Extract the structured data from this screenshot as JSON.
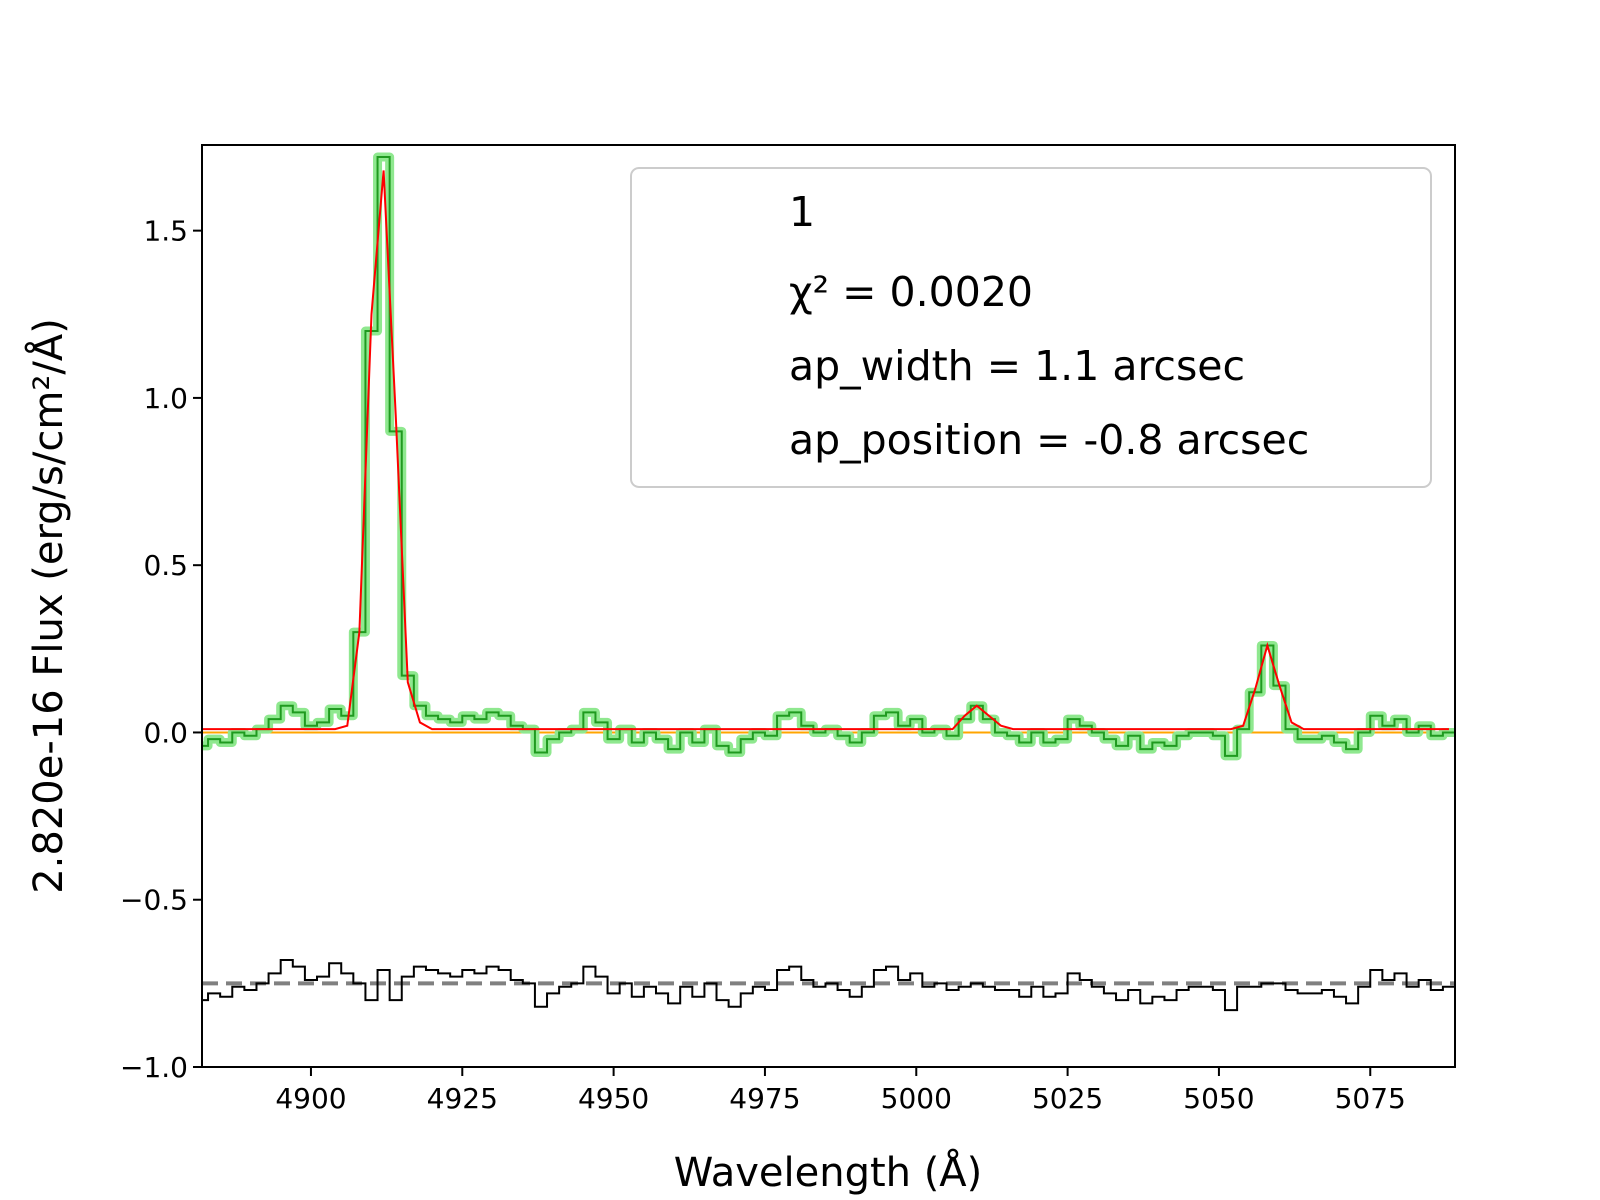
{
  "chart_data": {
    "type": "step",
    "xlabel": "Wavelength (Å)",
    "ylabel": "2.820e-16  Flux (erg/s/cm²/Å)",
    "annotations": [
      "1",
      "χ² = 0.0020",
      "ap_width = 1.1 arcsec",
      "ap_position = -0.8 arcsec"
    ],
    "xlim": [
      4882,
      5089
    ],
    "ylim": [
      -1.0,
      1.756
    ],
    "xticks": [
      4900,
      4925,
      4950,
      4975,
      5000,
      5025,
      5050,
      5075
    ],
    "yticks": [
      {
        "value": -1.0,
        "label": "−1.0"
      },
      {
        "value": -0.5,
        "label": "−0.5"
      },
      {
        "value": 0.0,
        "label": "0.0"
      },
      {
        "value": 0.5,
        "label": "0.5"
      },
      {
        "value": 1.0,
        "label": "1.0"
      },
      {
        "value": 1.5,
        "label": "1.5"
      }
    ],
    "x": [
      4882,
      4884,
      4886,
      4888,
      4890,
      4892,
      4894,
      4896,
      4898,
      4900,
      4902,
      4904,
      4906,
      4908,
      4910,
      4912,
      4914,
      4916,
      4918,
      4920,
      4922,
      4924,
      4926,
      4928,
      4930,
      4932,
      4934,
      4936,
      4938,
      4940,
      4942,
      4944,
      4946,
      4948,
      4950,
      4952,
      4954,
      4956,
      4958,
      4960,
      4962,
      4964,
      4966,
      4968,
      4970,
      4972,
      4974,
      4976,
      4978,
      4980,
      4982,
      4984,
      4986,
      4988,
      4990,
      4992,
      4994,
      4996,
      4998,
      5000,
      5002,
      5004,
      5006,
      5008,
      5010,
      5012,
      5014,
      5016,
      5018,
      5020,
      5022,
      5024,
      5026,
      5028,
      5030,
      5032,
      5034,
      5036,
      5038,
      5040,
      5042,
      5044,
      5046,
      5048,
      5050,
      5052,
      5054,
      5056,
      5058,
      5060,
      5062,
      5064,
      5066,
      5068,
      5070,
      5072,
      5074,
      5076,
      5078,
      5080,
      5082,
      5084,
      5086,
      5088
    ],
    "hlines": [
      {
        "y": 0,
        "color": "#ffa500",
        "dash": false
      },
      {
        "y": -0.75,
        "color": "#808080",
        "dash": true
      }
    ],
    "series": [
      {
        "color": "#1f9a1f",
        "halo": "#8fe88f",
        "style": "step",
        "values": [
          -0.04,
          -0.02,
          -0.03,
          0.0,
          -0.01,
          0.01,
          0.04,
          0.08,
          0.06,
          0.02,
          0.03,
          0.07,
          0.05,
          0.3,
          1.2,
          1.72,
          0.9,
          0.17,
          0.08,
          0.05,
          0.04,
          0.03,
          0.05,
          0.04,
          0.06,
          0.05,
          0.02,
          0.01,
          -0.06,
          -0.02,
          0.0,
          0.01,
          0.06,
          0.03,
          -0.02,
          0.01,
          -0.03,
          0.0,
          -0.02,
          -0.05,
          0.0,
          -0.03,
          0.01,
          -0.04,
          -0.06,
          -0.02,
          0.0,
          -0.01,
          0.05,
          0.06,
          0.02,
          0.0,
          0.01,
          -0.01,
          -0.03,
          0.0,
          0.05,
          0.06,
          0.02,
          0.04,
          0.0,
          0.01,
          -0.01,
          0.04,
          0.08,
          0.04,
          0.0,
          -0.01,
          -0.03,
          0.0,
          -0.03,
          -0.02,
          0.04,
          0.02,
          0.0,
          -0.02,
          -0.04,
          -0.01,
          -0.05,
          -0.03,
          -0.04,
          -0.01,
          0.0,
          0.0,
          -0.01,
          -0.07,
          0.01,
          0.12,
          0.26,
          0.14,
          0.01,
          -0.02,
          -0.02,
          -0.01,
          -0.03,
          -0.05,
          0.0,
          0.05,
          0.02,
          0.04,
          0.0,
          0.02,
          -0.01,
          0.0
        ]
      },
      {
        "color": "#ff0000",
        "style": "line",
        "values": [
          0.01,
          0.01,
          0.01,
          0.01,
          0.01,
          0.01,
          0.01,
          0.01,
          0.01,
          0.01,
          0.01,
          0.01,
          0.02,
          0.3,
          1.25,
          1.68,
          0.95,
          0.15,
          0.03,
          0.01,
          0.01,
          0.01,
          0.01,
          0.01,
          0.01,
          0.01,
          0.01,
          0.01,
          0.01,
          0.01,
          0.01,
          0.01,
          0.01,
          0.01,
          0.01,
          0.01,
          0.01,
          0.01,
          0.01,
          0.01,
          0.01,
          0.01,
          0.01,
          0.01,
          0.01,
          0.01,
          0.01,
          0.01,
          0.01,
          0.01,
          0.01,
          0.01,
          0.01,
          0.01,
          0.01,
          0.01,
          0.01,
          0.01,
          0.01,
          0.01,
          0.01,
          0.01,
          0.01,
          0.05,
          0.08,
          0.05,
          0.02,
          0.01,
          0.01,
          0.01,
          0.01,
          0.01,
          0.01,
          0.01,
          0.01,
          0.01,
          0.01,
          0.01,
          0.01,
          0.01,
          0.01,
          0.01,
          0.01,
          0.01,
          0.01,
          0.01,
          0.02,
          0.13,
          0.26,
          0.14,
          0.03,
          0.01,
          0.01,
          0.01,
          0.01,
          0.01,
          0.01,
          0.01,
          0.01,
          0.01,
          0.01,
          0.01,
          0.01,
          0.01
        ]
      },
      {
        "color": "#000000",
        "style": "step",
        "values": [
          -0.8,
          -0.78,
          -0.79,
          -0.76,
          -0.77,
          -0.75,
          -0.72,
          -0.68,
          -0.7,
          -0.74,
          -0.73,
          -0.69,
          -0.72,
          -0.75,
          -0.8,
          -0.71,
          -0.8,
          -0.73,
          -0.7,
          -0.71,
          -0.72,
          -0.73,
          -0.71,
          -0.72,
          -0.7,
          -0.71,
          -0.74,
          -0.75,
          -0.82,
          -0.78,
          -0.76,
          -0.75,
          -0.7,
          -0.73,
          -0.78,
          -0.75,
          -0.79,
          -0.76,
          -0.78,
          -0.81,
          -0.76,
          -0.79,
          -0.75,
          -0.8,
          -0.82,
          -0.78,
          -0.76,
          -0.77,
          -0.71,
          -0.7,
          -0.74,
          -0.76,
          -0.75,
          -0.77,
          -0.79,
          -0.76,
          -0.71,
          -0.7,
          -0.74,
          -0.72,
          -0.76,
          -0.75,
          -0.77,
          -0.76,
          -0.75,
          -0.76,
          -0.77,
          -0.77,
          -0.79,
          -0.76,
          -0.79,
          -0.78,
          -0.72,
          -0.74,
          -0.76,
          -0.78,
          -0.8,
          -0.77,
          -0.81,
          -0.79,
          -0.8,
          -0.77,
          -0.76,
          -0.76,
          -0.77,
          -0.83,
          -0.76,
          -0.76,
          -0.75,
          -0.75,
          -0.77,
          -0.78,
          -0.78,
          -0.77,
          -0.79,
          -0.81,
          -0.76,
          -0.71,
          -0.74,
          -0.72,
          -0.76,
          -0.74,
          -0.77,
          -0.76
        ]
      }
    ]
  }
}
